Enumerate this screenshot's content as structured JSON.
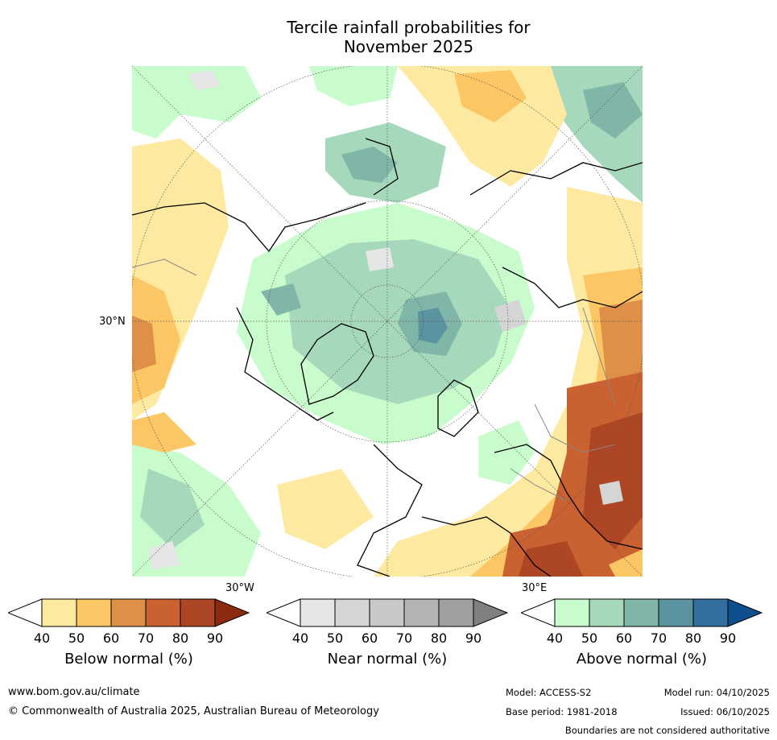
{
  "title": {
    "line1": "Tercile rainfall probabilities for",
    "line2": "November 2025"
  },
  "map": {
    "lat_label": "30°N",
    "lon_label_left": "30°W",
    "lon_label_right": "30°E",
    "below_colors": [
      "#fde9a0",
      "#fdc665",
      "#df9048",
      "#c96131",
      "#ad4625",
      "#8c2a10"
    ],
    "near_colors": [
      "#e6e6e6",
      "#d5d5d5",
      "#c8c8c8",
      "#b4b4b4",
      "#a0a0a0",
      "#808080"
    ],
    "above_colors": [
      "#c9fccc",
      "#a6d9bb",
      "#7fb6a8",
      "#5b93a0",
      "#336ea0",
      "#0f4f8d"
    ]
  },
  "colorbars": [
    {
      "label": "Below normal (%)",
      "ticks": [
        "40",
        "50",
        "60",
        "70",
        "80",
        "90"
      ]
    },
    {
      "label": "Near normal (%)",
      "ticks": [
        "40",
        "50",
        "60",
        "70",
        "80",
        "90"
      ]
    },
    {
      "label": "Above normal (%)",
      "ticks": [
        "40",
        "50",
        "60",
        "70",
        "80",
        "90"
      ]
    }
  ],
  "footer": {
    "website": "www.bom.gov.au/climate",
    "copyright": "© Commonwealth of Australia 2025, Australian Bureau of Meteorology",
    "model": "Model: ACCESS-S2",
    "base_period": "Base period: 1981-2018",
    "model_run": "Model run: 04/10/2025",
    "issued": "Issued: 06/10/2025",
    "disclaimer": "Boundaries are not considered authoritative"
  }
}
